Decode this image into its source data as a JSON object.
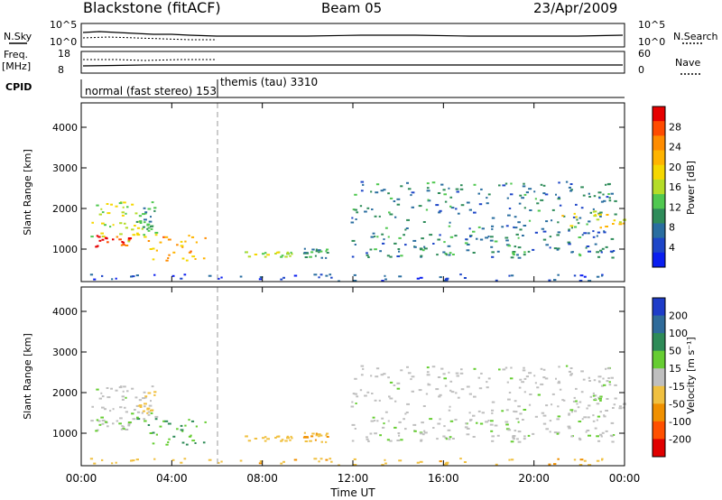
{
  "header": {
    "station": "Blackstone (fitACF)",
    "beam": "Beam 05",
    "date": "23/Apr/2009"
  },
  "panels": {
    "nsky": {
      "label": "N.Sky",
      "right_label": "N.Search",
      "ticks_left": [
        "10^5",
        "10^0"
      ],
      "ticks_right": [
        "10^5",
        "10^0"
      ]
    },
    "freq": {
      "label_top": "Freq.",
      "label_unit": "[MHz]",
      "right_label": "Nave",
      "ticks_left": [
        "18",
        "8"
      ],
      "ticks_right": [
        "60",
        "0"
      ]
    },
    "cpid": {
      "label": "CPID",
      "modes": [
        "normal (fast stereo) 153",
        "themis (tau) 3310"
      ]
    }
  },
  "axes": {
    "ylabel": "Slant Range [km]",
    "yticks": [
      "4000",
      "3000",
      "2000",
      "1000"
    ],
    "xlabel": "Time UT",
    "xticks": [
      "00:00",
      "04:00",
      "08:00",
      "12:00",
      "16:00",
      "20:00",
      "00:00"
    ]
  },
  "colorbars": {
    "power": {
      "label": "Power [dB]",
      "ticks": [
        "28",
        "24",
        "20",
        "16",
        "12",
        "8",
        "4"
      ],
      "colors": [
        "#e60000",
        "#ff4b00",
        "#ff8c00",
        "#ffb400",
        "#f5d700",
        "#b4dc28",
        "#50c850",
        "#2f8c5a",
        "#2a6ea0",
        "#1e46c8",
        "#0a1ef0"
      ]
    },
    "velocity": {
      "label": "Velocity [m s⁻¹]",
      "ticks": [
        "200",
        "100",
        "50",
        "15",
        "-15",
        "-50",
        "-100",
        "-200"
      ],
      "colors": [
        "#1e3cc8",
        "#2f6b9a",
        "#2e8b57",
        "#66cd32",
        "#bfbfbf",
        "#f0c040",
        "#f09000",
        "#ff5000",
        "#e00000"
      ]
    }
  },
  "chart_data": {
    "type": "heatmap",
    "title": "Blackstone (fitACF)  Beam 05  23/Apr/2009",
    "xlabel": "Time UT",
    "ylabel": "Slant Range [km]",
    "xlim": [
      0,
      24
    ],
    "ylim": [
      200,
      4600
    ],
    "xtick_hours": [
      0,
      4,
      8,
      12,
      16,
      20,
      24
    ],
    "ytick_values": [
      1000,
      2000,
      3000,
      4000
    ],
    "mode_change_hour": 6,
    "power_range_db": [
      0,
      30
    ],
    "velocity_range": [
      -250,
      250
    ],
    "echo_regions": [
      {
        "t": [
          0.1,
          3.3
        ],
        "r": [
          1200,
          2200
        ],
        "power_db": 15,
        "velocity": 5
      },
      {
        "t": [
          0.6,
          2.1
        ],
        "r": [
          1050,
          1350
        ],
        "power_db": 27,
        "velocity": 8
      },
      {
        "t": [
          2.3,
          5.5
        ],
        "r": [
          700,
          1450
        ],
        "power_db": 21,
        "velocity": 50
      },
      {
        "t": [
          2.4,
          3.2
        ],
        "r": [
          1500,
          2100
        ],
        "power_db": 10,
        "velocity": -20
      },
      {
        "t": [
          7.2,
          9.3
        ],
        "r": [
          820,
          950
        ],
        "power_db": 14,
        "velocity": -30
      },
      {
        "t": [
          9.8,
          10.9
        ],
        "r": [
          800,
          1050
        ],
        "power_db": 9,
        "velocity": -40
      },
      {
        "t": [
          11.9,
          23.6
        ],
        "r": [
          800,
          2700
        ],
        "power_db": 8,
        "velocity": 5
      },
      {
        "t": [
          21.2,
          24.0
        ],
        "r": [
          1550,
          1950
        ],
        "power_db": 18,
        "velocity": 5
      },
      {
        "t": [
          0.0,
          24.0
        ],
        "r": [
          230,
          400
        ],
        "power_db": 4,
        "velocity": -40
      }
    ]
  }
}
